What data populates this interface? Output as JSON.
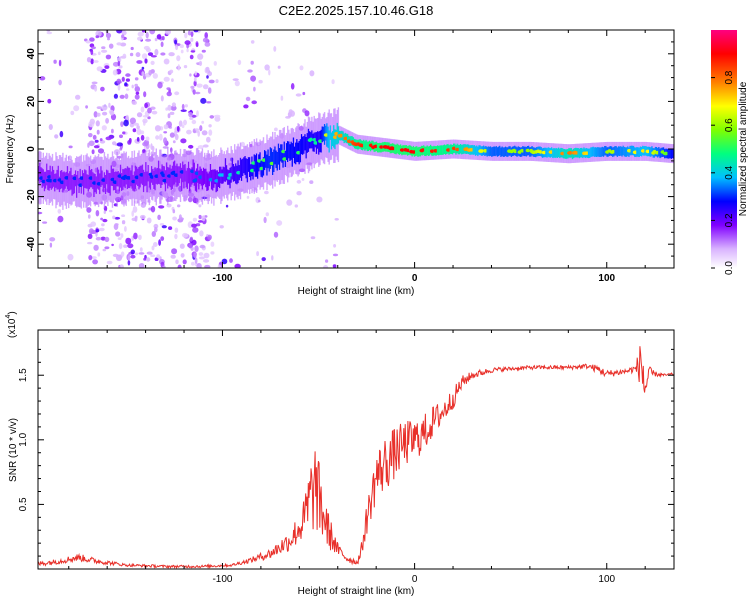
{
  "title": "C2E2.2025.157.10.46.G18",
  "chart_data": [
    {
      "type": "heatmap",
      "xlabel": "Height of straight line (km)",
      "ylabel": "Frequency (Hz)",
      "xlim": [
        -196,
        135
      ],
      "ylim": [
        -50,
        50
      ],
      "xticks": [
        -100,
        0,
        100
      ],
      "xtick_labels": [
        "-100",
        "0",
        "100"
      ],
      "yticks": [
        -40,
        -20,
        0,
        20,
        40
      ],
      "ytick_labels": [
        "-40",
        "-20",
        "0",
        "20",
        "40"
      ],
      "grid": false,
      "colorbar": {
        "label": "Normalized spectral amplitude",
        "range": [
          0,
          1
        ],
        "ticks": [
          0.0,
          0.2,
          0.4,
          0.6,
          0.8
        ],
        "tick_labels": [
          "0.0",
          "0.2",
          "0.4",
          "0.6",
          "0.8"
        ],
        "colors": [
          "#ffffff",
          "#c080ff",
          "#8000ff",
          "#0000ff",
          "#00c0ff",
          "#00ff80",
          "#80ff00",
          "#ffff00",
          "#ff8000",
          "#ff0000",
          "#ff0080"
        ]
      },
      "ridge": {
        "x": [
          -196,
          -180,
          -160,
          -140,
          -120,
          -105,
          -90,
          -75,
          -60,
          -50,
          -45,
          -40,
          -35,
          -30,
          -20,
          -10,
          0,
          20,
          40,
          60,
          80,
          100,
          120,
          135
        ],
        "y": [
          -12,
          -14,
          -13,
          -12,
          -11,
          -12,
          -9,
          -5,
          0,
          4,
          5,
          6,
          4,
          2,
          1,
          0,
          -1,
          0,
          -1,
          -1,
          -2,
          -1,
          -1,
          -2
        ],
        "amplitude": [
          0.3,
          0.3,
          0.3,
          0.3,
          0.3,
          0.35,
          0.45,
          0.55,
          0.5,
          0.45,
          0.7,
          0.75,
          0.8,
          0.85,
          0.9,
          0.9,
          0.9,
          0.85,
          0.6,
          0.6,
          0.8,
          0.6,
          0.7,
          0.5
        ]
      },
      "noise_region_x": [
        -170,
        -105
      ]
    },
    {
      "type": "line",
      "xlabel": "Height of straight line (km)",
      "ylabel": "SNR (10 * v/v)",
      "y_multiplier_label": "(x10",
      "y_multiplier_exp": "4",
      "y_multiplier_close": ")",
      "xlim": [
        -196,
        135
      ],
      "ylim": [
        0,
        1.85
      ],
      "xticks": [
        -100,
        0,
        100
      ],
      "xtick_labels": [
        "-100",
        "0",
        "100"
      ],
      "yticks": [
        0.5,
        1.0,
        1.5
      ],
      "ytick_labels": [
        "0.5",
        "1.0",
        "1.5"
      ],
      "grid": false,
      "series": [
        {
          "color": "#e8302a",
          "x": [
            -196,
            -185,
            -175,
            -165,
            -150,
            -130,
            -110,
            -95,
            -85,
            -75,
            -65,
            -58,
            -55,
            -52,
            -48,
            -45,
            -40,
            -35,
            -30,
            -28,
            -25,
            -20,
            -15,
            -10,
            -5,
            0,
            5,
            10,
            15,
            20,
            25,
            30,
            40,
            50,
            60,
            70,
            80,
            90,
            95,
            100,
            110,
            115,
            118,
            120,
            122,
            125,
            130,
            135
          ],
          "y": [
            0.04,
            0.06,
            0.09,
            0.06,
            0.03,
            0.02,
            0.02,
            0.03,
            0.07,
            0.12,
            0.22,
            0.36,
            0.5,
            0.65,
            0.45,
            0.3,
            0.15,
            0.08,
            0.05,
            0.12,
            0.38,
            0.72,
            0.82,
            0.9,
            0.97,
            1.0,
            1.05,
            1.15,
            1.22,
            1.32,
            1.45,
            1.5,
            1.54,
            1.55,
            1.56,
            1.56,
            1.56,
            1.57,
            1.55,
            1.51,
            1.53,
            1.55,
            1.6,
            1.4,
            1.52,
            1.51,
            1.5,
            1.51
          ],
          "noise_amplitude": [
            0.02,
            0.02,
            0.03,
            0.02,
            0.01,
            0.01,
            0.01,
            0.01,
            0.02,
            0.04,
            0.08,
            0.15,
            0.3,
            0.35,
            0.25,
            0.15,
            0.05,
            0.03,
            0.02,
            0.05,
            0.12,
            0.2,
            0.22,
            0.2,
            0.18,
            0.16,
            0.15,
            0.12,
            0.1,
            0.08,
            0.05,
            0.03,
            0.02,
            0.015,
            0.015,
            0.015,
            0.015,
            0.02,
            0.03,
            0.03,
            0.02,
            0.03,
            0.2,
            0.25,
            0.05,
            0.02,
            0.01,
            0.01
          ]
        }
      ]
    }
  ]
}
